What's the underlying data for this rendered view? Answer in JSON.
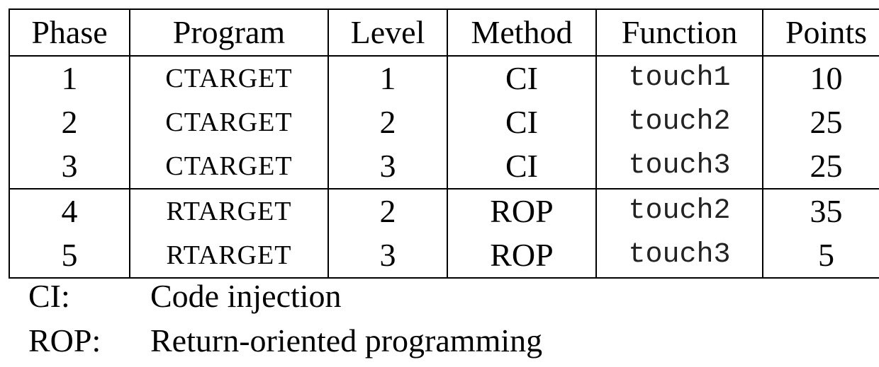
{
  "table": {
    "headers": [
      "Phase",
      "Program",
      "Level",
      "Method",
      "Function",
      "Points"
    ],
    "rows": [
      [
        "1",
        "CTARGET",
        "1",
        "CI",
        "touch1",
        "10"
      ],
      [
        "2",
        "CTARGET",
        "2",
        "CI",
        "touch2",
        "25"
      ],
      [
        "3",
        "CTARGET",
        "3",
        "CI",
        "touch3",
        "25"
      ],
      [
        "4",
        "RTARGET",
        "2",
        "ROP",
        "touch2",
        "35"
      ],
      [
        "5",
        "RTARGET",
        "3",
        "ROP",
        "touch3",
        "5"
      ]
    ]
  },
  "legend": [
    {
      "abbr": "CI:",
      "meaning": "Code injection"
    },
    {
      "abbr": "ROP:",
      "meaning": "Return-oriented programming"
    }
  ]
}
